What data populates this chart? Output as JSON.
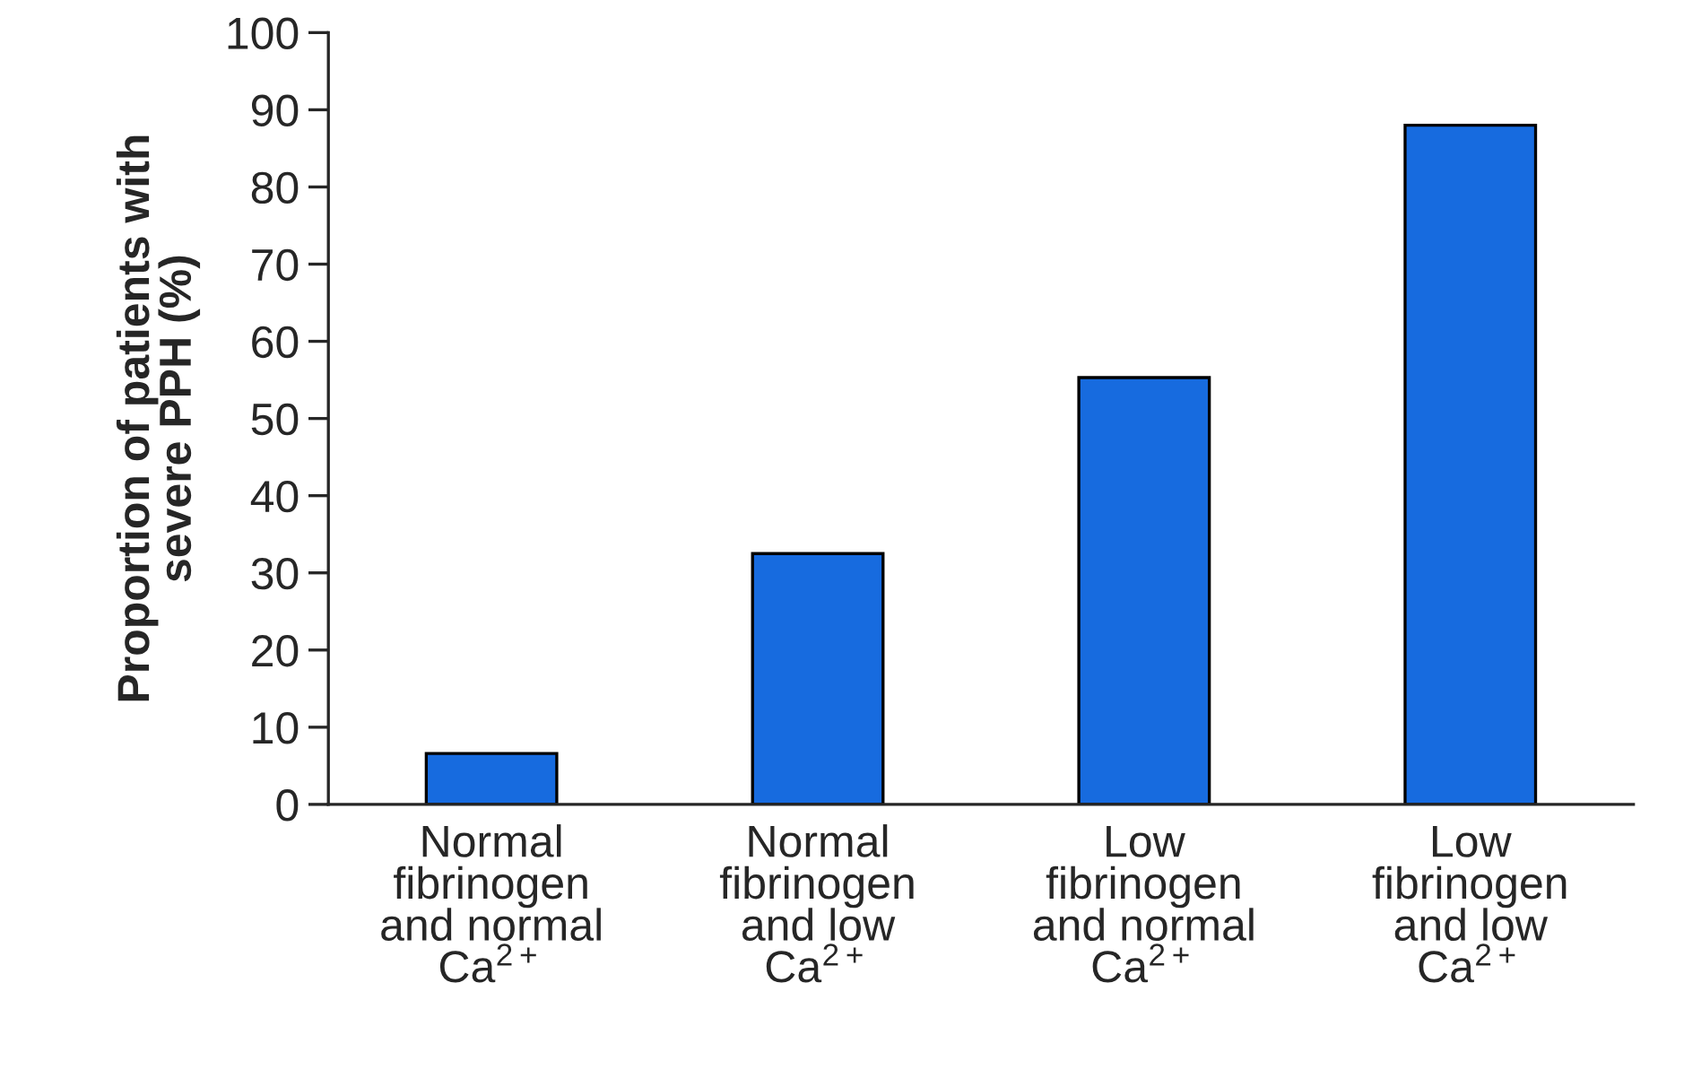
{
  "chart_data": {
    "type": "bar",
    "ylabel": "Proportion of patients with\nsevere PPH (%)",
    "categories": [
      "Normal\nfibrinogen\nand normal\nCa$^{2+}$",
      "Normal\nfibrinogen\nand low\nCa$^{2+}$",
      "Low\nfibrinogen\nand normal\nCa$^{2+}$",
      "Low\nfibrinogen\nand low\nCa$^{2+}$"
    ],
    "values": [
      6.6,
      32.5,
      55.3,
      88.0
    ],
    "color": "#176bdf",
    "ylim": [
      0,
      100
    ],
    "yticks": [
      0,
      10,
      20,
      30,
      40,
      50,
      60,
      70,
      80,
      90,
      100
    ],
    "grid": false
  }
}
